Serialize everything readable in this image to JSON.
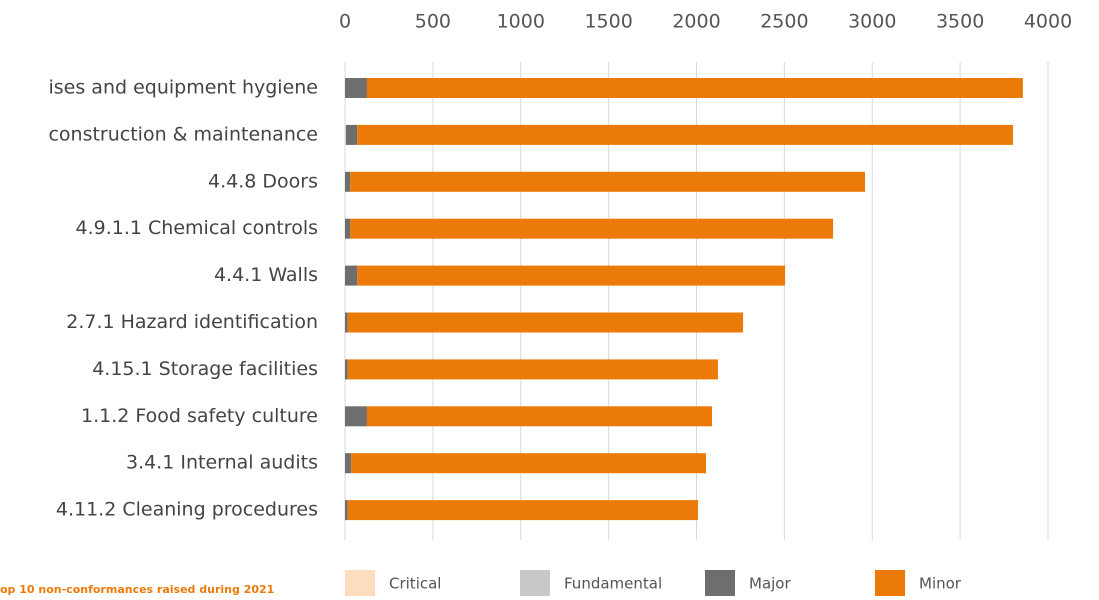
{
  "chart_data": {
    "type": "stacked_barh",
    "caption": "op 10 non-conformances raised during 2021",
    "categories": [
      "ises and equipment hygiene",
      "construction & maintenance",
      "4.4.8 Doors",
      "4.9.1.1 Chemical controls",
      "4.4.1 Walls",
      "2.7.1 Hazard identification",
      "4.15.1 Storage facilities",
      "1.1.2 Food safety culture",
      "3.4.1 Internal audits",
      "4.11.2 Cleaning procedures"
    ],
    "series": [
      {
        "name": "Critical",
        "color": "#fddcc0",
        "values": [
          0,
          5,
          0,
          0,
          0,
          0,
          0,
          0,
          0,
          0
        ]
      },
      {
        "name": "Fundamental",
        "color": "#c8c8c8",
        "values": [
          0,
          0,
          0,
          0,
          0,
          0,
          0,
          0,
          0,
          0
        ]
      },
      {
        "name": "Major",
        "color": "#6e6e6e",
        "values": [
          125,
          65,
          30,
          30,
          70,
          15,
          15,
          125,
          35,
          15
        ]
      },
      {
        "name": "Minor",
        "color": "#ec7a08",
        "values": [
          3732,
          3731,
          2929,
          2747,
          2434,
          2250,
          2107,
          1963,
          2019,
          1994
        ]
      }
    ],
    "xlim": [
      0,
      4000
    ],
    "xticks": [
      0,
      500,
      1000,
      1500,
      2000,
      2500,
      3000,
      3500,
      4000
    ],
    "grid": true
  }
}
